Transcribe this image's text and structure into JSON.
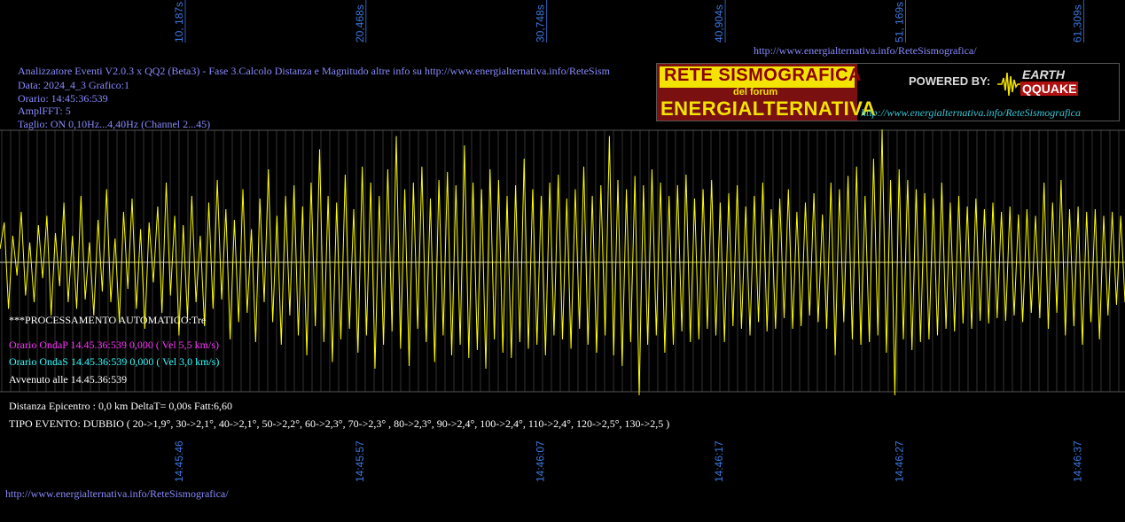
{
  "colors": {
    "background": "#000000",
    "signal": "#ffff00",
    "grid": "#555555",
    "baseline": "#cccccc",
    "axis_label": "#3a78e0",
    "header_text": "#8a8aff",
    "onda_p": "#ff33ff",
    "onda_s": "#33ffff",
    "white_text": "#ffffff"
  },
  "header": {
    "top_url": "http://www.energialternativa.info/ReteSismografica/",
    "line1": "Analizzatore Eventi V2.0.3 x QQ2 (Beta3) - Fase 3.Calcolo Distanza e Magnitudo altre info su http://www.energialternativa.info/ReteSism",
    "line2": "Data: 2024_4_3 Grafico:1",
    "line3": "Orario: 14:45:36:539",
    "line4": "AmplFFT: 5",
    "line5": "Taglio: ON 0,10Hz...4,40Hz       (Channel 2...45)"
  },
  "logo": {
    "title": "RETE SISMOGRAFICA",
    "subtitle": "del forum",
    "name": "ENERGIALTERNATIVA",
    "powered": "POWERED BY:",
    "earth": "EARTH",
    "quake": "QQUAKE",
    "url": "http://www.energialternativa.info/ReteSismografica"
  },
  "info": {
    "processing": "***PROCESSAMENTO AUTOMATICO:Tre",
    "onda_p": "Orario OndaP 14.45.36:539  0,000 ( Vel 5,5 km/s)",
    "onda_s": "Orario OndaS 14.45.36:539  0,000 ( Vel 3,0 km/s)",
    "avvenuto": "Avvenuto alle 14.45.36:539",
    "distanza": "Distanza Epicentro : 0,0 km DeltaT= 0,00s  Fatt:6,60",
    "tipo": "TIPO EVENTO: DUBBIO ( 20->1,9°, 30->2,1°, 40->2,1°, 50->2,2°, 60->2,3°, 70->2,3° , 80->2,3°, 90->2,4°, 100->2,4°, 110->2,4°, 120->2,5°, 130->2,5 )"
  },
  "footer_url": "http://www.energialternativa.info/ReteSismografica/",
  "chart_data": {
    "type": "line",
    "x_top_ticks": [
      {
        "value": 10.187,
        "label": "10, 187s"
      },
      {
        "value": 20.468,
        "label": "20,468s"
      },
      {
        "value": 30.748,
        "label": "30,748s"
      },
      {
        "value": 40.904,
        "label": "40,904s"
      },
      {
        "value": 51.169,
        "label": "51, 169s"
      },
      {
        "value": 61.309,
        "label": "61,309s"
      }
    ],
    "x_bottom_ticks": [
      {
        "value": 10.187,
        "label": "14:45:46"
      },
      {
        "value": 20.468,
        "label": "14:45:57"
      },
      {
        "value": 30.748,
        "label": "14:46:07"
      },
      {
        "value": 40.904,
        "label": "14:46:17"
      },
      {
        "value": 51.169,
        "label": "14:46:27"
      },
      {
        "value": 61.309,
        "label": "14:46:37"
      }
    ],
    "xlim": [
      0,
      64
    ],
    "ylim": [
      -1,
      1
    ],
    "grid": true,
    "series": [
      {
        "samples": [
          0.1,
          0.3,
          -0.35,
          0.2,
          -0.1,
          0.38,
          -0.25,
          0.15,
          -0.3,
          0.28,
          -0.12,
          0.35,
          -0.4,
          0.22,
          -0.18,
          0.45,
          -0.3,
          0.2,
          -0.35,
          0.5,
          -0.28,
          0.15,
          -0.4,
          0.32,
          -0.22,
          0.55,
          -0.3,
          0.18,
          -0.45,
          0.38,
          -0.2,
          0.48,
          -0.35,
          0.25,
          -0.5,
          0.3,
          -0.15,
          0.42,
          -0.38,
          0.6,
          -0.25,
          0.35,
          -0.55,
          0.28,
          -0.42,
          0.5,
          -0.3,
          0.2,
          -0.48,
          0.45,
          -0.35,
          0.62,
          -0.28,
          0.4,
          -0.58,
          0.32,
          -0.45,
          0.55,
          -0.38,
          0.25,
          -0.6,
          0.48,
          -0.3,
          0.7,
          -0.45,
          0.35,
          -0.62,
          0.5,
          -0.4,
          0.58,
          -0.55,
          0.42,
          -0.7,
          0.6,
          -0.48,
          0.85,
          -0.6,
          0.5,
          -0.75,
          0.45,
          -0.58,
          0.66,
          -0.5,
          0.4,
          -0.68,
          0.72,
          -0.55,
          0.6,
          -0.8,
          0.5,
          -0.62,
          0.7,
          -0.52,
          0.95,
          -0.65,
          0.55,
          -0.78,
          0.6,
          -0.5,
          0.72,
          -0.6,
          0.48,
          -0.75,
          0.62,
          -0.55,
          0.68,
          -0.7,
          0.58,
          -0.62,
          0.88,
          -0.72,
          0.6,
          -0.66,
          0.55,
          -0.8,
          0.7,
          -0.58,
          0.62,
          -0.68,
          0.5,
          -0.72,
          0.58,
          -0.6,
          0.78,
          -0.65,
          0.55,
          -0.62,
          0.5,
          -0.7,
          0.6,
          -0.55,
          0.66,
          -0.58,
          0.48,
          -0.65,
          0.55,
          -0.5,
          0.72,
          -0.62,
          0.5,
          -0.68,
          0.58,
          -0.55,
          0.95,
          -0.7,
          0.62,
          -0.78,
          0.55,
          -0.6,
          0.65,
          -1.0,
          0.58,
          -0.62,
          0.7,
          -0.55,
          0.6,
          -0.68,
          0.5,
          -0.62,
          0.58,
          -0.52,
          0.66,
          -0.6,
          0.48,
          -0.58,
          0.55,
          -0.5,
          0.62,
          -0.55,
          0.45,
          -0.6,
          0.52,
          -0.48,
          0.58,
          -0.5,
          0.42,
          -0.55,
          0.5,
          -0.45,
          0.6,
          -0.52,
          0.4,
          -0.5,
          0.48,
          -0.42,
          0.55,
          -0.5,
          0.38,
          -0.48,
          0.45,
          -0.4,
          0.52,
          -0.45,
          0.36,
          -0.5,
          0.6,
          -0.7,
          0.55,
          -0.45,
          0.65,
          -0.58,
          0.72,
          -0.62,
          0.5,
          -0.6,
          0.78,
          -0.55,
          1.0,
          -0.68,
          0.62,
          -1.0,
          0.7,
          -0.58,
          0.62,
          -0.66,
          0.55,
          -0.6,
          0.52,
          -0.58,
          0.48,
          -0.55,
          0.6,
          -0.5,
          0.45,
          -0.52,
          0.5,
          -0.46,
          0.42,
          -0.5,
          0.48,
          -0.44,
          0.4,
          -0.46,
          0.45,
          -0.42,
          0.38,
          -0.44,
          0.42,
          -0.4,
          0.36,
          -0.45,
          0.4,
          -0.38,
          0.35,
          -0.42,
          0.6,
          -0.5,
          0.45,
          -0.38,
          0.62,
          -0.55,
          0.4,
          -0.48,
          0.42,
          -0.62,
          0.38,
          -0.45,
          0.4,
          -0.58,
          0.35,
          -0.4,
          0.38,
          -0.32,
          0.35,
          -0.3
        ]
      }
    ]
  }
}
